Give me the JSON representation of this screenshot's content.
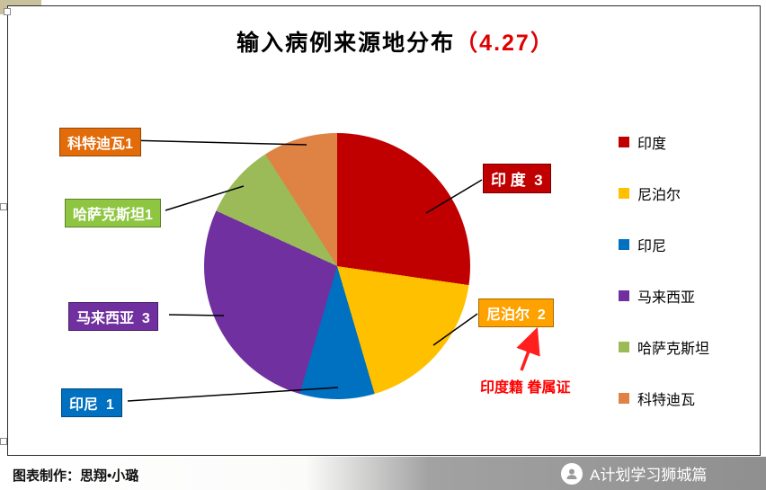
{
  "title": {
    "main": "输入病例来源地分布",
    "suffix": "（4.27）"
  },
  "chart_data": {
    "type": "pie",
    "title": "输入病例来源地分布（4.27）",
    "categories": [
      "印度",
      "尼泊尔",
      "印尼",
      "马来西亚",
      "哈萨克斯坦",
      "科特迪瓦"
    ],
    "values": [
      3,
      2,
      1,
      3,
      1,
      1
    ],
    "colors": [
      "#c00000",
      "#ffc000",
      "#0070c0",
      "#7030a0",
      "#9bbb59",
      "#de8344"
    ],
    "legend_position": "right",
    "start_angle_deg": 0,
    "direction": "clockwise"
  },
  "callouts": [
    {
      "label": "科特迪瓦1",
      "color": "#e26b0a"
    },
    {
      "label": "哈萨克斯坦1",
      "color": "#8ec641"
    },
    {
      "label": "马来西亚  3",
      "color": "#7030a0"
    },
    {
      "label": "印尼  1",
      "color": "#0070c0"
    },
    {
      "label": "印 度  3",
      "color": "#c00000"
    },
    {
      "label": "尼泊尔  2",
      "color": "#ffa200"
    }
  ],
  "annotation": {
    "text": "印度籍 眷属证",
    "color": "#ff0000"
  },
  "footer": {
    "credit": "图表制作：思翔•小璐",
    "brand": "A计划学习狮城篇"
  }
}
